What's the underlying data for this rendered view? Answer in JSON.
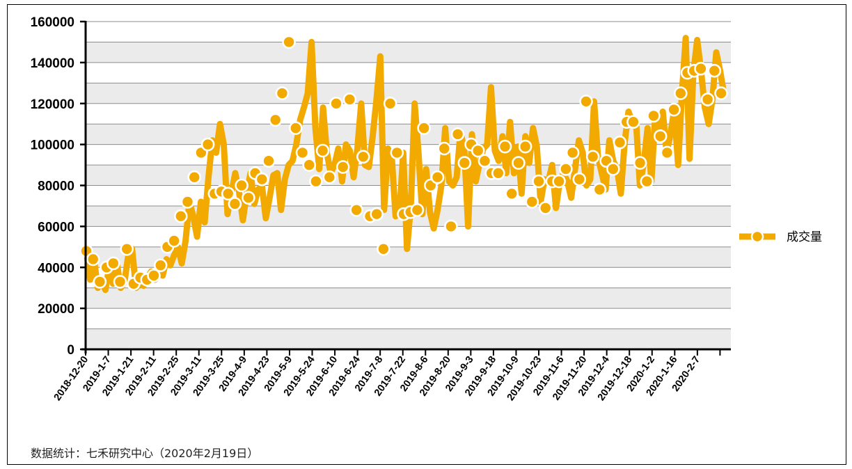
{
  "chart_data": {
    "type": "line",
    "series": [
      {
        "name": "成交量",
        "color": "#F2A900",
        "values": [
          48000,
          44000,
          33000,
          40000,
          42000,
          33000,
          49000,
          32000,
          35000,
          34000,
          36000,
          41000,
          50000,
          53000,
          65000,
          72000,
          84000,
          96000,
          100000,
          76000,
          77000,
          76000,
          71000,
          80000,
          74000,
          86000,
          83000,
          92000,
          112000,
          125000,
          150000,
          108000,
          96000,
          90000,
          82000,
          97000,
          84000,
          120000,
          89000,
          122000,
          68000,
          94000,
          65000,
          66000,
          49000,
          120000,
          96000,
          66000,
          67000,
          68000,
          108000,
          80000,
          84000,
          98000,
          60000,
          105000,
          91000,
          100000,
          97000,
          92000,
          86000,
          86000,
          99000,
          76000,
          91000,
          99000,
          72000,
          82000,
          69000,
          82000,
          82000,
          88000,
          96000,
          83000,
          121000,
          94000,
          78000,
          92000,
          88000,
          101000,
          111000,
          111000,
          91000,
          82000,
          114000,
          104000,
          96000,
          117000,
          125000,
          135000,
          136000,
          137000,
          122000,
          136000,
          125000
        ],
        "line_values": [
          48000,
          34000,
          44000,
          30000,
          33000,
          29000,
          40000,
          32000,
          42000,
          30000,
          33000,
          46000,
          49000,
          30000,
          32000,
          31000,
          35000,
          38000,
          34000,
          40000,
          36000,
          44000,
          41000,
          46000,
          50000,
          42000,
          53000,
          72000,
          65000,
          55000,
          72000,
          62000,
          84000,
          102000,
          96000,
          110000,
          100000,
          66000,
          76000,
          86000,
          77000,
          63000,
          76000,
          86000,
          71000,
          78000,
          80000,
          64000,
          74000,
          85000,
          86000,
          68000,
          83000,
          90000,
          92000,
          100000,
          112000,
          118000,
          125000,
          150000,
          108000,
          88000,
          118000,
          96000,
          86000,
          90000,
          98000,
          82000,
          100000,
          97000,
          84000,
          98000,
          120000,
          90000,
          89000,
          104000,
          122000,
          143000,
          68000,
          98000,
          94000,
          65000,
          66000,
          96000,
          49000,
          70000,
          120000,
          96000,
          66000,
          88000,
          67000,
          59000,
          68000,
          80000,
          108000,
          82000,
          80000,
          84000,
          106000,
          98000,
          60000,
          105000,
          82000,
          91000,
          98000,
          100000,
          128000,
          97000,
          92000,
          104000,
          86000,
          111000,
          86000,
          99000,
          76000,
          104000,
          91000,
          108000,
          99000,
          72000,
          83000,
          82000,
          90000,
          69000,
          82000,
          86000,
          82000,
          74000,
          88000,
          102000,
          96000,
          80000,
          83000,
          121000,
          94000,
          86000,
          78000,
          102000,
          92000,
          88000,
          76000,
          101000,
          116000,
          111000,
          111000,
          80000,
          91000,
          108000,
          82000,
          114000,
          104000,
          116000,
          96000,
          105000,
          117000,
          90000,
          125000,
          152000,
          93000,
          135000,
          151000,
          136000,
          118000,
          110000,
          122000,
          145000,
          136000,
          125000
        ]
      }
    ],
    "x_tick_labels": [
      "2018-12-20",
      "2019-1-7",
      "2019-1-21",
      "2019-2-11",
      "2019-2-25",
      "2019-3-11",
      "2019-3-25",
      "2019-4-9",
      "2019-4-23",
      "2019-5-9",
      "2019-5-24",
      "2019-6-10",
      "2019-6-24",
      "2019-7-8",
      "2019-7-22",
      "2019-8-6",
      "2019-8-20",
      "2019-9-3",
      "2019-9-18",
      "2019-10-9",
      "2019-10-23",
      "2019-11-6",
      "2019-11-20",
      "2019-12-4",
      "2019-12-18",
      "2020-1-2",
      "2020-1-16",
      "2020-2-7"
    ],
    "y_ticks": [
      0,
      20000,
      40000,
      60000,
      80000,
      100000,
      120000,
      140000,
      160000
    ],
    "ylim": [
      0,
      160000
    ],
    "grid": true,
    "legend": {
      "position": "right",
      "label": "成交量"
    },
    "title": "",
    "xlabel": "",
    "ylabel": "",
    "footnote": "数据统计：七禾研究中心（2020年2月19日）"
  },
  "colors": {
    "series": "#F2A900",
    "band_light": "#ffffff",
    "band_dark": "#ebebeb",
    "gridline": "#8c8c8c",
    "marker_stroke": "#ffffff"
  }
}
